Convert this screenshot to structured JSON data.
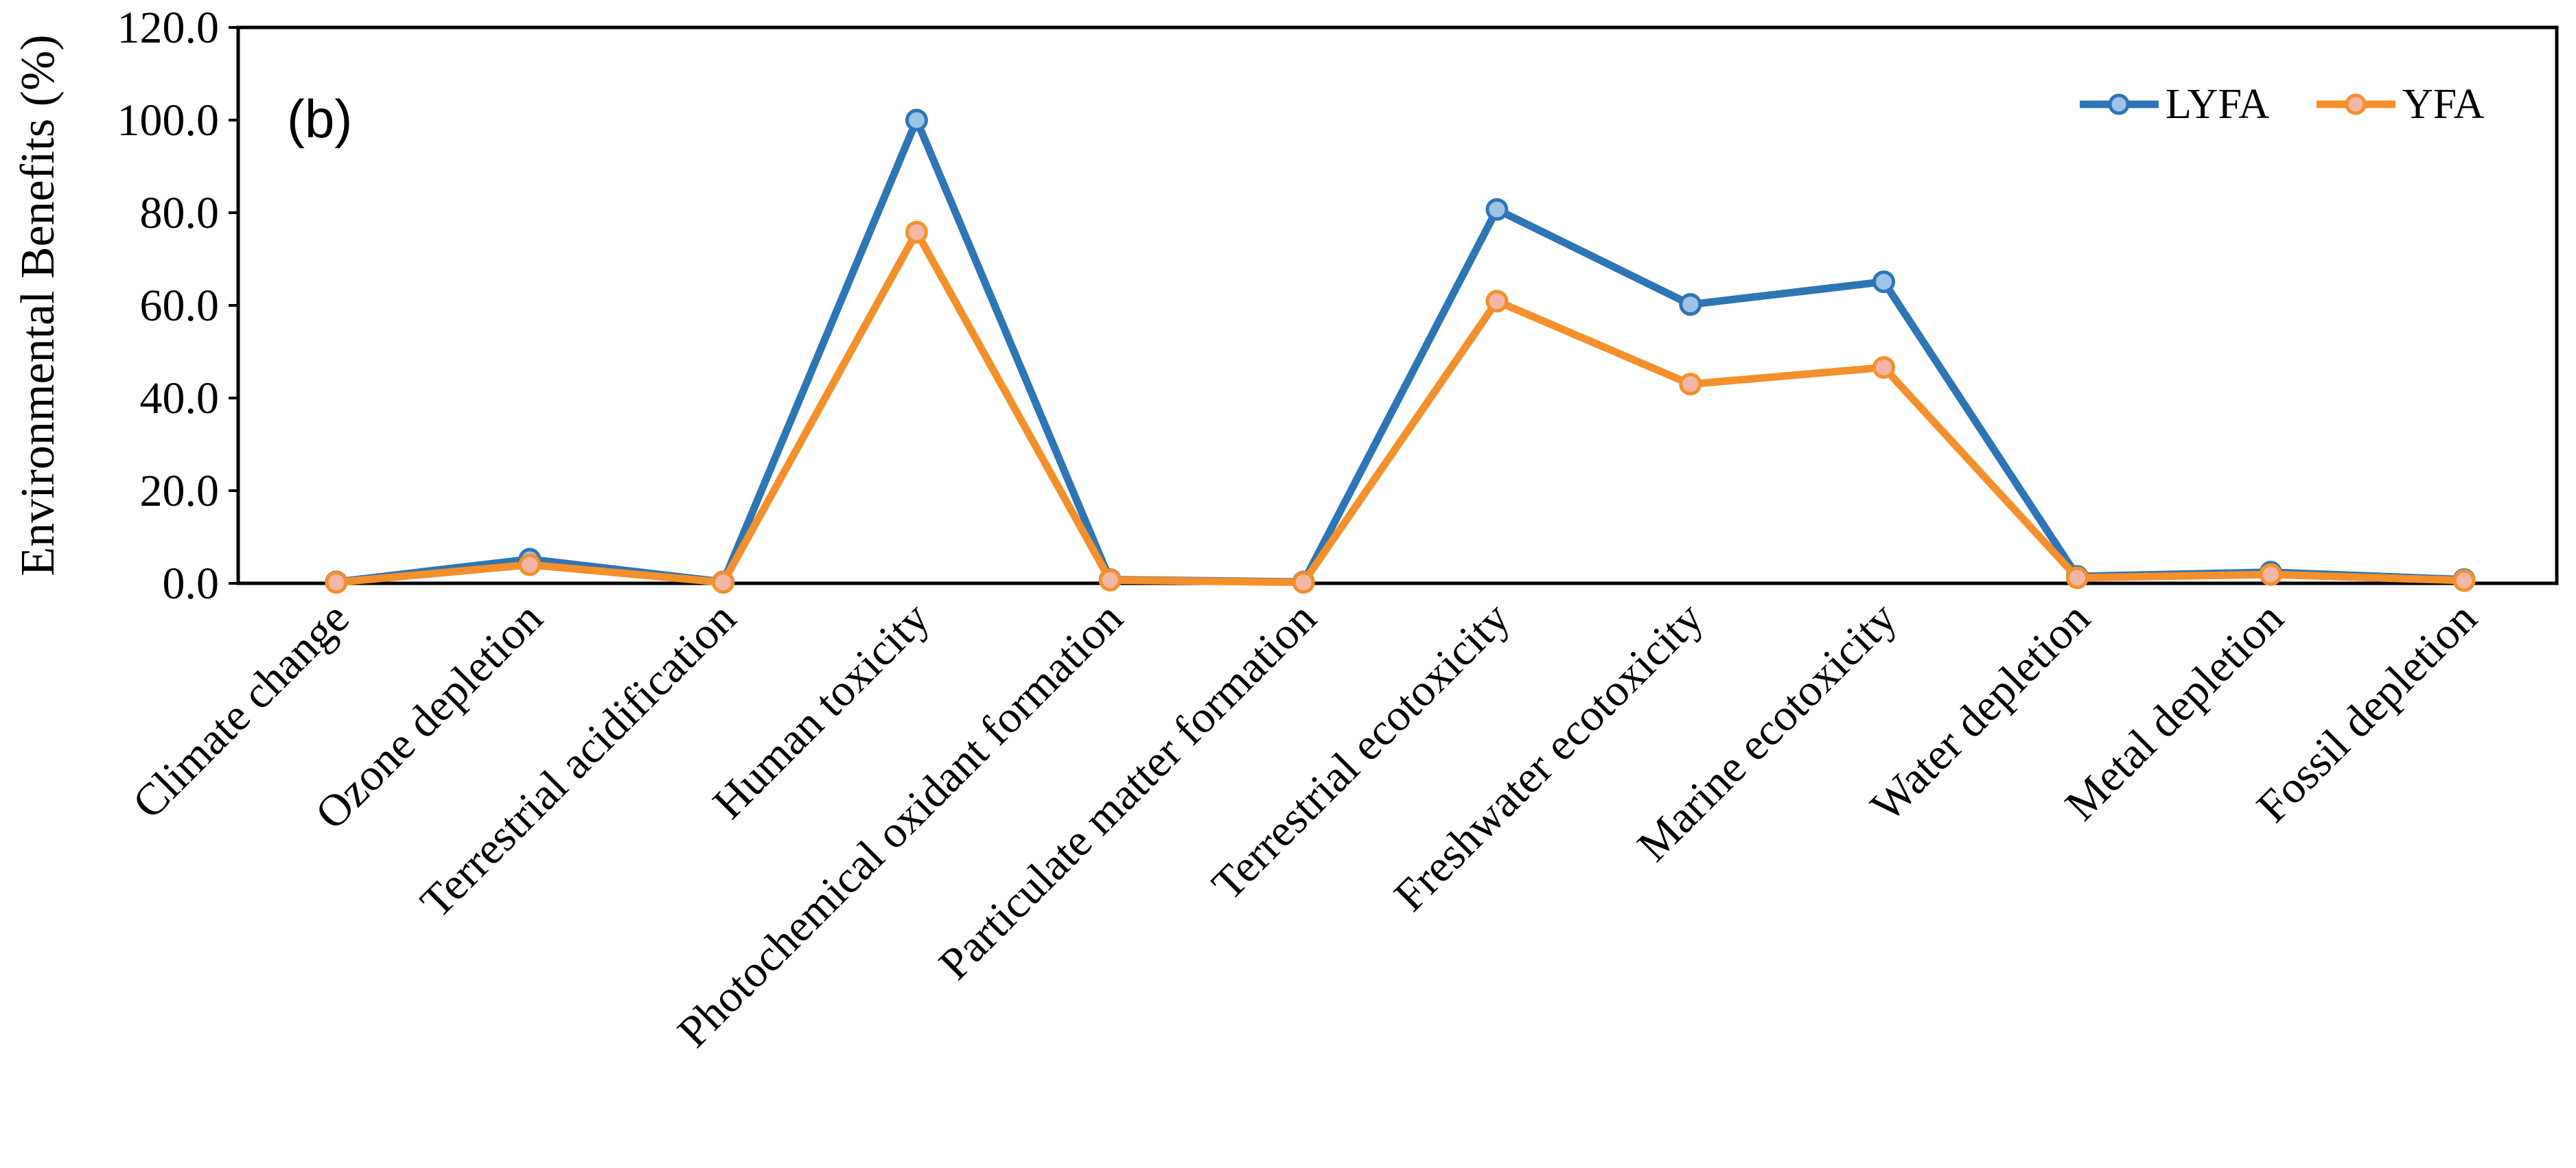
{
  "chart_data": {
    "type": "line",
    "panel_label": "(b)",
    "ylabel": "Environmental  Benefits (%)",
    "xlabel": "",
    "ylim": [
      0,
      120
    ],
    "yticks": [
      "0.0",
      "20.0",
      "40.0",
      "60.0",
      "80.0",
      "100.0",
      "120.0"
    ],
    "grid": false,
    "legend_position": "top-right",
    "categories": [
      "Climate change",
      "Ozone depletion",
      "Terrestrial acidification",
      "Human toxicity",
      "Photochemical oxidant formation",
      "Particulate matter formation",
      "Terrestrial ecotoxicity",
      "Freshwater ecotoxicity",
      "Marine ecotoxicity",
      "Water depletion",
      "Metal depletion",
      "Fossil depletion"
    ],
    "series": [
      {
        "name": "LYFA",
        "color": "#2e75b6",
        "marker_fill": "#9dc3e6",
        "values": [
          0.3,
          5.2,
          0.3,
          100.0,
          0.8,
          0.3,
          80.7,
          60.2,
          65.1,
          1.5,
          2.4,
          0.8
        ]
      },
      {
        "name": "YFA",
        "color": "#f4902b",
        "marker_fill": "#f4b6a6",
        "values": [
          0.2,
          4.0,
          0.2,
          75.8,
          0.7,
          0.2,
          60.9,
          43.0,
          46.6,
          1.2,
          1.9,
          0.6
        ]
      }
    ]
  }
}
